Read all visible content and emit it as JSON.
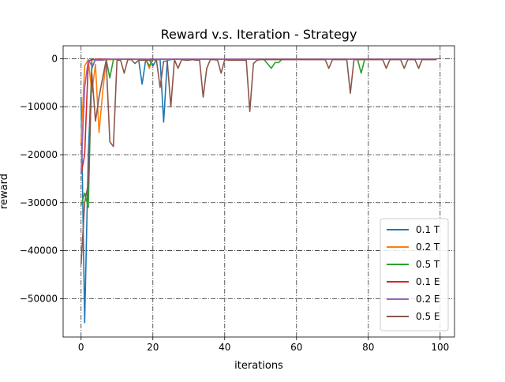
{
  "chart_data": {
    "type": "line",
    "title": "Reward v.s. Iteration - Strategy",
    "xlabel": "iterations",
    "ylabel": "reward",
    "xlim": [
      -5,
      104
    ],
    "ylim": [
      -58000,
      2700
    ],
    "xticks": [
      0,
      20,
      40,
      60,
      80,
      100
    ],
    "yticks": [
      0,
      -10000,
      -20000,
      -30000,
      -40000,
      -50000
    ],
    "ytick_labels": [
      "0",
      "−10000",
      "−20000",
      "−30000",
      "−40000",
      "−50000"
    ],
    "grid": true,
    "grid_style": "dash-dot",
    "legend_position": "lower-right",
    "series": [
      {
        "name": "0.1 T",
        "color": "#1f77b4",
        "points": [
          [
            0,
            -8000
          ],
          [
            1,
            -55000
          ],
          [
            2,
            -20000
          ],
          [
            3,
            -2000
          ],
          [
            4,
            -100
          ],
          [
            5,
            -100
          ],
          [
            6,
            -100
          ],
          [
            7,
            -100
          ],
          [
            8,
            -100
          ],
          [
            10,
            -100
          ],
          [
            14,
            -100
          ],
          [
            16,
            -100
          ],
          [
            17,
            -5300
          ],
          [
            18,
            -200
          ],
          [
            19,
            -200
          ],
          [
            20,
            -1500
          ],
          [
            21,
            -200
          ],
          [
            22,
            -200
          ],
          [
            23,
            -13200
          ],
          [
            24,
            -300
          ],
          [
            26,
            -100
          ],
          [
            30,
            -100
          ],
          [
            40,
            -100
          ],
          [
            50,
            -100
          ],
          [
            60,
            -100
          ],
          [
            70,
            -100
          ],
          [
            80,
            -100
          ],
          [
            90,
            -100
          ],
          [
            99,
            -100
          ]
        ]
      },
      {
        "name": "0.2 T",
        "color": "#ff7f0e",
        "points": [
          [
            0,
            -17500
          ],
          [
            1,
            -1500
          ],
          [
            2,
            -200
          ],
          [
            3,
            -7000
          ],
          [
            4,
            -1200
          ],
          [
            5,
            -15400
          ],
          [
            6,
            -7000
          ],
          [
            7,
            -200
          ],
          [
            8,
            -200
          ],
          [
            9,
            -200
          ],
          [
            10,
            -100
          ],
          [
            14,
            -100
          ],
          [
            16,
            -100
          ],
          [
            18,
            -100
          ],
          [
            19,
            -2000
          ],
          [
            20,
            -100
          ],
          [
            22,
            -100
          ],
          [
            30,
            -100
          ],
          [
            40,
            -100
          ],
          [
            50,
            -100
          ],
          [
            60,
            -100
          ],
          [
            70,
            -100
          ],
          [
            80,
            -100
          ],
          [
            90,
            -100
          ],
          [
            99,
            -100
          ]
        ]
      },
      {
        "name": "0.5 T",
        "color": "#2ca02c",
        "points": [
          [
            0,
            -30500
          ],
          [
            1,
            -28000
          ],
          [
            2,
            -31000
          ],
          [
            3,
            -200
          ],
          [
            4,
            -200
          ],
          [
            5,
            -200
          ],
          [
            6,
            -200
          ],
          [
            7,
            -200
          ],
          [
            8,
            -4000
          ],
          [
            9,
            -200
          ],
          [
            10,
            -100
          ],
          [
            14,
            -100
          ],
          [
            16,
            -100
          ],
          [
            18,
            -100
          ],
          [
            19,
            -1500
          ],
          [
            20,
            -200
          ],
          [
            21,
            -200
          ],
          [
            24,
            -100
          ],
          [
            30,
            -100
          ],
          [
            40,
            -100
          ],
          [
            50,
            -100
          ],
          [
            51,
            -200
          ],
          [
            53,
            -2000
          ],
          [
            54,
            -800
          ],
          [
            55,
            -800
          ],
          [
            56,
            -100
          ],
          [
            60,
            -100
          ],
          [
            70,
            -100
          ],
          [
            77,
            -100
          ],
          [
            78,
            -3000
          ],
          [
            79,
            -100
          ],
          [
            80,
            -100
          ],
          [
            90,
            -100
          ],
          [
            99,
            -100
          ]
        ]
      },
      {
        "name": "0.1 E",
        "color": "#d62728",
        "points": [
          [
            0,
            -24000
          ],
          [
            1,
            -20000
          ],
          [
            2,
            -500
          ],
          [
            3,
            -200
          ],
          [
            4,
            -100
          ],
          [
            6,
            -100
          ],
          [
            10,
            -100
          ],
          [
            20,
            -100
          ],
          [
            30,
            -100
          ],
          [
            40,
            -100
          ],
          [
            50,
            -100
          ],
          [
            60,
            -100
          ],
          [
            70,
            -100
          ],
          [
            80,
            -100
          ],
          [
            90,
            -100
          ],
          [
            99,
            -100
          ]
        ]
      },
      {
        "name": "0.2 E",
        "color": "#9467bd",
        "points": [
          [
            0,
            -24000
          ],
          [
            1,
            -6000
          ],
          [
            2,
            -200
          ],
          [
            3,
            -1500
          ],
          [
            4,
            -300
          ],
          [
            5,
            -300
          ],
          [
            6,
            -300
          ],
          [
            7,
            -200
          ],
          [
            8,
            -100
          ],
          [
            10,
            -100
          ],
          [
            20,
            -100
          ],
          [
            30,
            -100
          ],
          [
            40,
            -100
          ],
          [
            50,
            -100
          ],
          [
            60,
            -100
          ],
          [
            70,
            -100
          ],
          [
            80,
            -100
          ],
          [
            90,
            -100
          ],
          [
            99,
            -100
          ]
        ]
      },
      {
        "name": "0.5 E",
        "color": "#8c564b",
        "points": [
          [
            0,
            -42800
          ],
          [
            1,
            -30000
          ],
          [
            2,
            -26000
          ],
          [
            3,
            -3000
          ],
          [
            4,
            -13000
          ],
          [
            5,
            -8000
          ],
          [
            6,
            -4000
          ],
          [
            7,
            -300
          ],
          [
            8,
            -17300
          ],
          [
            9,
            -18300
          ],
          [
            10,
            -300
          ],
          [
            11,
            -300
          ],
          [
            12,
            -3000
          ],
          [
            13,
            -200
          ],
          [
            14,
            -200
          ],
          [
            15,
            -1000
          ],
          [
            16,
            -300
          ],
          [
            17,
            -300
          ],
          [
            18,
            -300
          ],
          [
            19,
            -300
          ],
          [
            20,
            -200
          ],
          [
            21,
            -300
          ],
          [
            22,
            -6000
          ],
          [
            23,
            -500
          ],
          [
            24,
            -500
          ],
          [
            25,
            -10000
          ],
          [
            26,
            -200
          ],
          [
            27,
            -2000
          ],
          [
            28,
            -200
          ],
          [
            29,
            -300
          ],
          [
            30,
            -300
          ],
          [
            31,
            -200
          ],
          [
            32,
            -300
          ],
          [
            33,
            -300
          ],
          [
            34,
            -8000
          ],
          [
            35,
            -2000
          ],
          [
            36,
            -200
          ],
          [
            37,
            -200
          ],
          [
            38,
            -300
          ],
          [
            39,
            -3000
          ],
          [
            40,
            -200
          ],
          [
            41,
            -300
          ],
          [
            42,
            -300
          ],
          [
            43,
            -300
          ],
          [
            44,
            -300
          ],
          [
            45,
            -300
          ],
          [
            46,
            -300
          ],
          [
            47,
            -11000
          ],
          [
            48,
            -1000
          ],
          [
            49,
            -300
          ],
          [
            50,
            -200
          ],
          [
            52,
            -200
          ],
          [
            55,
            -200
          ],
          [
            60,
            -200
          ],
          [
            65,
            -200
          ],
          [
            68,
            -200
          ],
          [
            69,
            -2000
          ],
          [
            70,
            -200
          ],
          [
            72,
            -200
          ],
          [
            74,
            -200
          ],
          [
            75,
            -7200
          ],
          [
            76,
            -200
          ],
          [
            78,
            -200
          ],
          [
            80,
            -200
          ],
          [
            81,
            -200
          ],
          [
            82,
            -200
          ],
          [
            84,
            -200
          ],
          [
            85,
            -2000
          ],
          [
            86,
            -200
          ],
          [
            88,
            -200
          ],
          [
            89,
            -200
          ],
          [
            90,
            -2000
          ],
          [
            91,
            -200
          ],
          [
            92,
            -200
          ],
          [
            93,
            -200
          ],
          [
            94,
            -2000
          ],
          [
            95,
            -200
          ],
          [
            96,
            -200
          ],
          [
            97,
            -200
          ],
          [
            98,
            -200
          ],
          [
            99,
            -200
          ]
        ]
      }
    ]
  }
}
